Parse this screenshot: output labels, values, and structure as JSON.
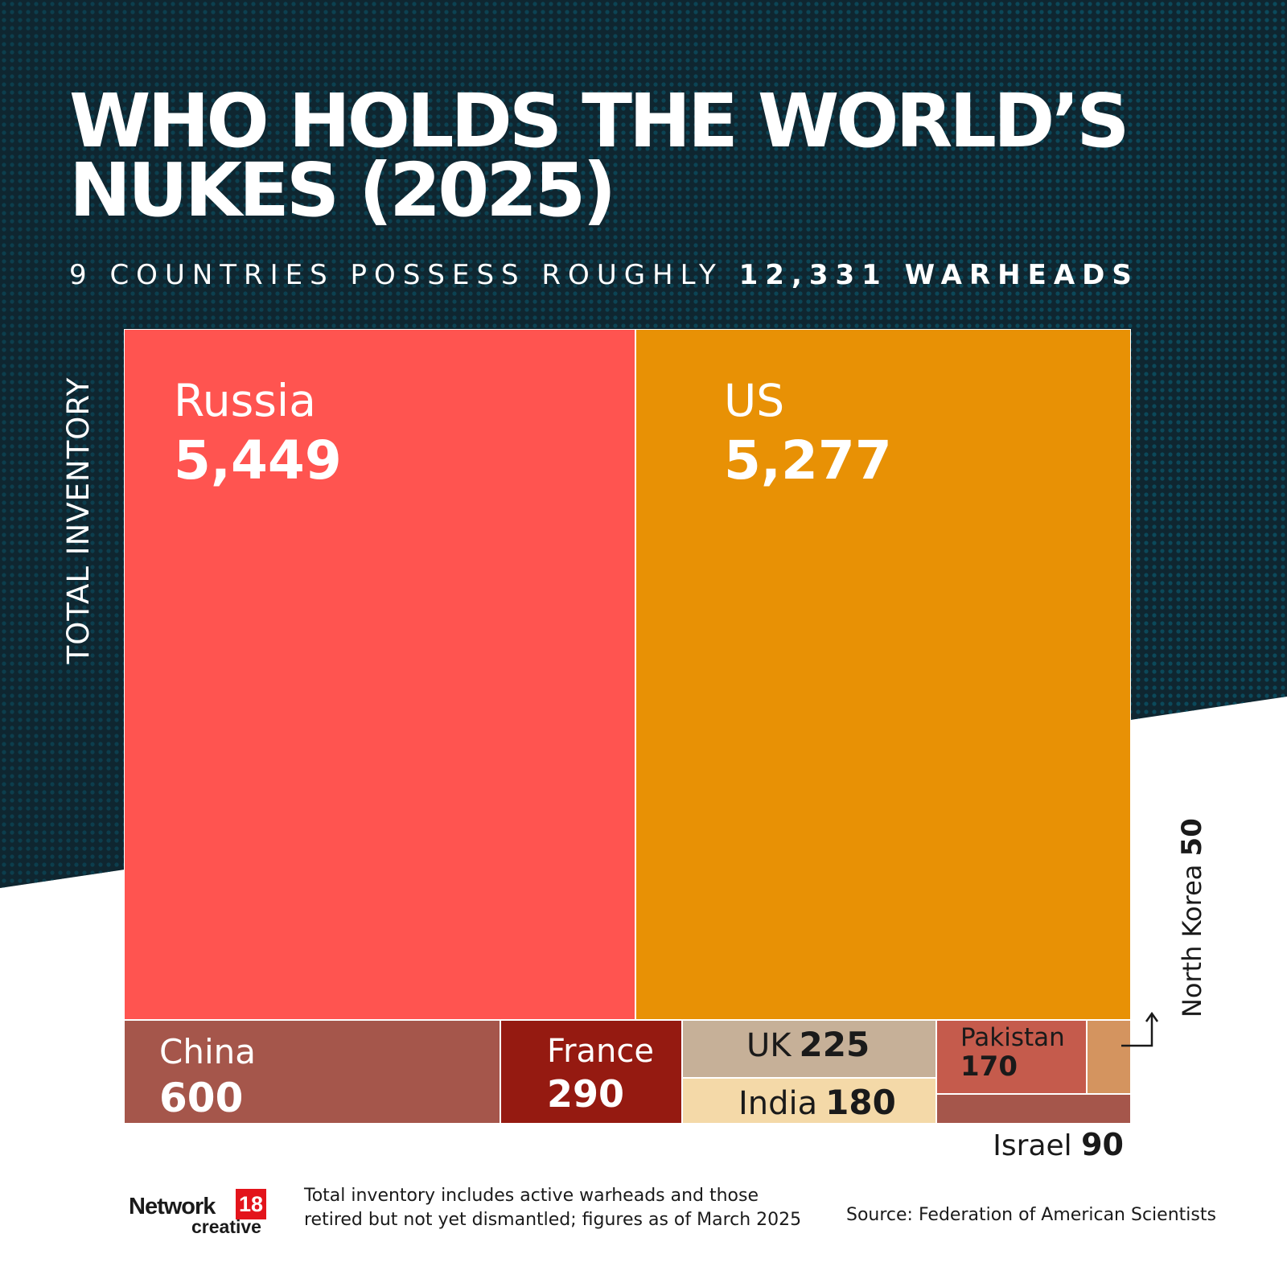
{
  "title": "WHO HOLDS THE WORLD’S NUKES (2025)",
  "subtitle": {
    "prefix": "9 COUNTRIES POSSESS ROUGHLY",
    "highlight": "12,331 WARHEADS"
  },
  "axis_label": "TOTAL INVENTORY",
  "colors": {
    "background_dark": "#0f2630",
    "background_dots": "#0b4a5c",
    "Russia": "#ff5450",
    "US": "#e89105",
    "China": "#a5564b",
    "France": "#951a11",
    "UK": "#c6b098",
    "India": "#f4d9a8",
    "Pakistan": "#c55b4c",
    "North Korea": "#d4945f",
    "Israel": "#a5564b"
  },
  "chart_data": {
    "type": "treemap",
    "title": "WHO HOLDS THE WORLD’S NUKES (2025)",
    "subtitle": "9 COUNTRIES POSSESS ROUGHLY 12,331 WARHEADS",
    "ylabel": "TOTAL INVENTORY",
    "total": 12331,
    "categories": [
      "Russia",
      "US",
      "China",
      "France",
      "UK",
      "India",
      "Pakistan",
      "Israel",
      "North Korea"
    ],
    "values": [
      5449,
      5277,
      600,
      290,
      225,
      180,
      170,
      90,
      50
    ],
    "labels": [
      "5,449",
      "5,277",
      "600",
      "290",
      "225",
      "180",
      "170",
      "90",
      "50"
    ]
  },
  "footer": {
    "logo_text": "Network",
    "logo_number": "18",
    "logo_sub": "creative",
    "note": "Total inventory includes active warheads and those retired but not yet dismantled; figures as of March 2025",
    "source": "Source: Federation of American Scientists"
  }
}
